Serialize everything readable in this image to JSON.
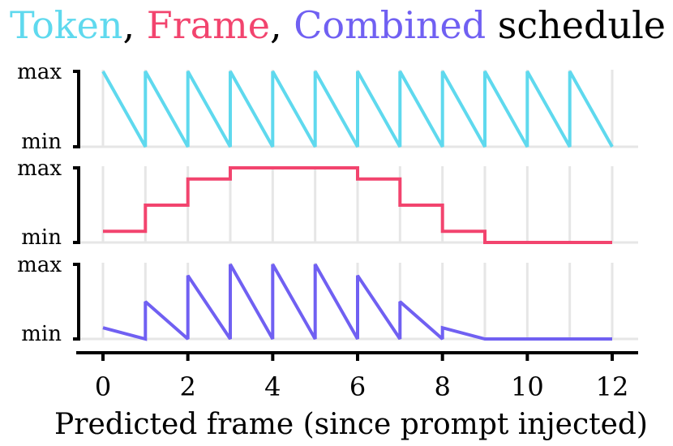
{
  "title": {
    "part1": "Token",
    "sep1": ", ",
    "part2": "Frame",
    "sep2": ", ",
    "part3": "Combined",
    "part4": " schedule",
    "colors": {
      "token": "#5fd9ee",
      "frame": "#f2446e",
      "combined": "#7060f2",
      "text": "#000000"
    }
  },
  "chart_data": {
    "type": "line",
    "xlabel": "Predicted frame (since prompt injected)",
    "xlim": [
      0,
      12
    ],
    "xticks": [
      0,
      2,
      4,
      6,
      8,
      10,
      12
    ],
    "panels": [
      {
        "name": "Token",
        "color": "#5fd9ee",
        "ytick_labels": [
          "max",
          "min"
        ],
        "ylim": [
          0,
          1
        ],
        "points": [
          [
            0,
            1
          ],
          [
            1,
            0
          ],
          [
            1,
            1
          ],
          [
            2,
            0
          ],
          [
            2,
            1
          ],
          [
            3,
            0
          ],
          [
            3,
            1
          ],
          [
            4,
            0
          ],
          [
            4,
            1
          ],
          [
            5,
            0
          ],
          [
            5,
            1
          ],
          [
            6,
            0
          ],
          [
            6,
            1
          ],
          [
            7,
            0
          ],
          [
            7,
            1
          ],
          [
            8,
            0
          ],
          [
            8,
            1
          ],
          [
            9,
            0
          ],
          [
            9,
            1
          ],
          [
            10,
            0
          ],
          [
            10,
            1
          ],
          [
            11,
            0
          ],
          [
            11,
            1
          ],
          [
            12,
            0
          ]
        ]
      },
      {
        "name": "Frame",
        "color": "#f2446e",
        "ytick_labels": [
          "max",
          "min"
        ],
        "ylim": [
          0,
          1
        ],
        "points": [
          [
            0,
            0.15
          ],
          [
            1,
            0.15
          ],
          [
            1,
            0.5
          ],
          [
            2,
            0.5
          ],
          [
            2,
            0.85
          ],
          [
            3,
            0.85
          ],
          [
            3,
            1
          ],
          [
            6,
            1
          ],
          [
            6,
            0.85
          ],
          [
            7,
            0.85
          ],
          [
            7,
            0.5
          ],
          [
            8,
            0.5
          ],
          [
            8,
            0.15
          ],
          [
            9,
            0.15
          ],
          [
            9,
            0
          ],
          [
            12,
            0
          ]
        ]
      },
      {
        "name": "Combined",
        "color": "#7060f2",
        "ytick_labels": [
          "max",
          "min"
        ],
        "ylim": [
          0,
          1
        ],
        "points": [
          [
            0,
            0.15
          ],
          [
            1,
            0
          ],
          [
            1,
            0.5
          ],
          [
            2,
            0
          ],
          [
            2,
            0.85
          ],
          [
            3,
            0
          ],
          [
            3,
            1
          ],
          [
            4,
            0
          ],
          [
            4,
            1
          ],
          [
            5,
            0
          ],
          [
            5,
            1
          ],
          [
            6,
            0
          ],
          [
            6,
            0.85
          ],
          [
            7,
            0
          ],
          [
            7,
            0.5
          ],
          [
            8,
            0
          ],
          [
            8,
            0.15
          ],
          [
            9,
            0
          ],
          [
            12,
            0
          ]
        ]
      }
    ]
  }
}
